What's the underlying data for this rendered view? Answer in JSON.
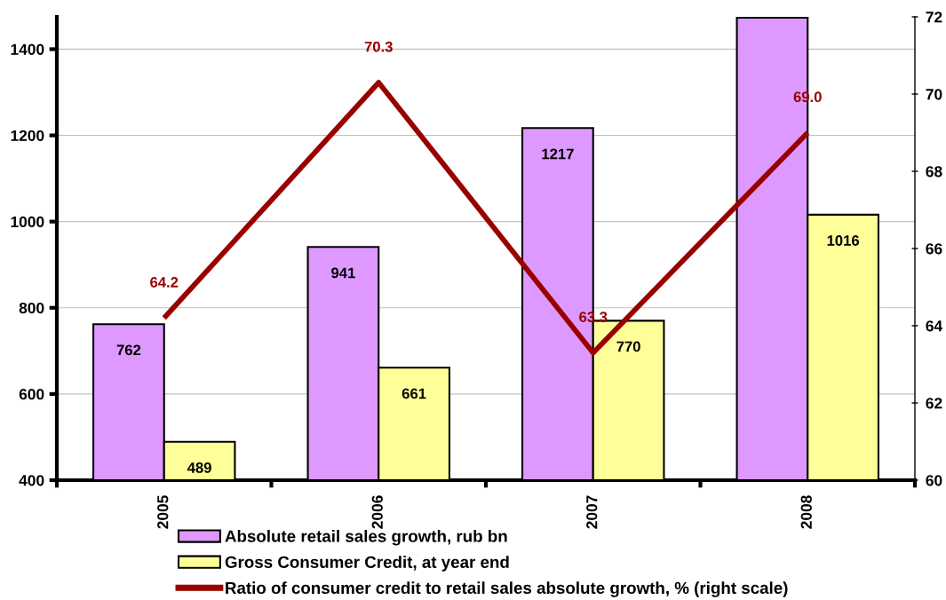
{
  "chart_data": {
    "type": "bar",
    "categories": [
      "2005",
      "2006",
      "2007",
      "2008"
    ],
    "series": [
      {
        "name": "Absolute retail sales growth, rub bn",
        "color": "#dd99ff",
        "values": [
          762,
          941,
          1217,
          1473
        ],
        "value_labels": [
          "762",
          "941",
          "1217",
          null
        ]
      },
      {
        "name": "Gross Consumer Credit, at year end",
        "color": "#ffff99",
        "values": [
          489,
          661,
          770,
          1016
        ],
        "value_labels": [
          "489",
          "661",
          "770",
          "1016"
        ]
      },
      {
        "name": "Ratio of consumer credit to retail sales absolute growth, % (right scale)",
        "type": "line",
        "axis": "y2",
        "color": "#990000",
        "values": [
          64.2,
          70.3,
          63.3,
          69.0
        ],
        "value_labels": [
          "64.2",
          "70.3",
          "63.3",
          "69.0"
        ]
      }
    ],
    "ylim": [
      400,
      1475
    ],
    "yticks": [
      400,
      600,
      800,
      1000,
      1200,
      1400
    ],
    "y2lim": [
      60,
      72
    ],
    "y2ticks": [
      60,
      62,
      64,
      66,
      68,
      70,
      72
    ],
    "grid": "y",
    "legend": "bottom",
    "marker": "none",
    "line_style": "solid"
  }
}
